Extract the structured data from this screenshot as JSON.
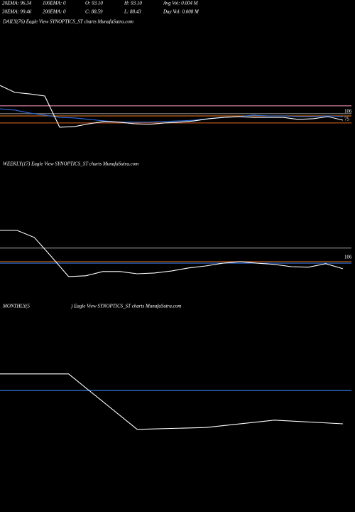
{
  "header": {
    "row1": [
      "20EMA: 96.34",
      "100EMA: 0",
      "O: 93.10",
      "H: 93.10",
      "Avg Vol: 0.004  M"
    ],
    "row2": [
      "30EMA: 99.46",
      "200EMA: 0",
      "C: 88.59",
      "L: 88.43",
      "Day Vol: 0.008 M"
    ]
  },
  "chart_data": [
    {
      "type": "line",
      "title": "DAILY(76) Eagle  View  SYNOPTICS_ST charts MunafaSutra.com",
      "ylim": [
        -86,
        436
      ],
      "yticks": [
        106,
        75
      ],
      "hlines": [
        {
          "value": 129,
          "color": "#e98aa6"
        },
        {
          "value": 98,
          "color": "#8a8a8a"
        },
        {
          "value": 89,
          "color": "#c8641e"
        },
        {
          "value": 61,
          "color": "#b3521a"
        }
      ],
      "series": [
        {
          "color": "#2f6fe0",
          "values": [
            117,
            112,
            100,
            92,
            83,
            81,
            75,
            69,
            64,
            64,
            64,
            67,
            69,
            72,
            78,
            83,
            86,
            92,
            89,
            89,
            86,
            86,
            89,
            86
          ]
        },
        {
          "color": "#ffffff",
          "values": [
            210,
            182,
            176,
            168,
            44,
            47,
            58,
            67,
            64,
            58,
            55,
            61,
            64,
            69,
            78,
            83,
            86,
            83,
            83,
            83,
            75,
            78,
            86,
            72
          ]
        }
      ]
    },
    {
      "type": "line",
      "title": "WEEKLY(17) Eagle  View  SYNOPTICS_ST charts MunafaSutra.com",
      "ylim": [
        -72,
        450
      ],
      "yticks": [
        106
      ],
      "hlines": [
        {
          "value": 143,
          "color": "#8a8a8a"
        },
        {
          "value": 89,
          "color": "#c8641e"
        },
        {
          "value": 83,
          "color": "#2f6fe0"
        }
      ],
      "series": [
        {
          "color": "#ffffff",
          "values": [
            213,
            213,
            185,
            109,
            30,
            33,
            50,
            50,
            41,
            44,
            52,
            64,
            72,
            83,
            89,
            83,
            78,
            69,
            67,
            81,
            61
          ]
        }
      ]
    },
    {
      "type": "line",
      "title": "MONTHLY(5",
      "subtitle": ") Eagle  View  SYNOPTICS_ST charts MunafaSutra.com",
      "ylim": [
        0,
        100
      ],
      "yticks": [],
      "hlines": [
        {
          "value": 58,
          "color": "#3a78f0"
        }
      ],
      "series": [
        {
          "color": "#ffffff",
          "values": [
            67,
            67,
            37,
            38,
            42,
            40
          ]
        }
      ]
    }
  ]
}
